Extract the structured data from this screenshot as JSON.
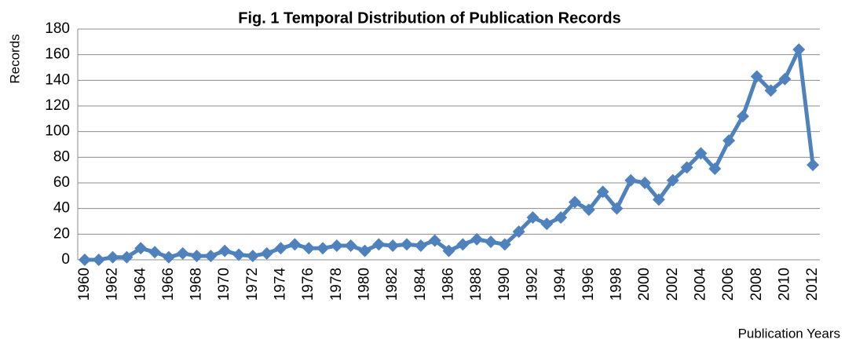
{
  "chart_data": {
    "type": "line",
    "title": "Fig. 1  Temporal Distribution of Publication Records",
    "y_label": "Records",
    "x_label": "Publication Years",
    "categories": [
      "1960",
      null,
      "1962",
      null,
      "1964",
      null,
      "1966",
      null,
      "1968",
      null,
      "1970",
      null,
      "1972",
      null,
      "1974",
      null,
      "1976",
      null,
      "1978",
      null,
      "1980",
      null,
      "1982",
      null,
      "1984",
      null,
      "1986",
      null,
      "1988",
      null,
      "1990",
      null,
      "1992",
      null,
      "1994",
      null,
      "1996",
      null,
      "1998",
      null,
      "2000",
      null,
      "2002",
      null,
      "2004",
      null,
      "2006",
      null,
      "2008",
      null,
      "2010",
      null,
      "2012"
    ],
    "series": [
      {
        "name": "Records",
        "color": "#4f81bd",
        "values": [
          0,
          0,
          2,
          2,
          9,
          6,
          2,
          5,
          3,
          3,
          7,
          4,
          3,
          5,
          9,
          12,
          9,
          9,
          11,
          11,
          7,
          12,
          11,
          12,
          11,
          15,
          7,
          12,
          16,
          14,
          12,
          22,
          33,
          28,
          33,
          45,
          39,
          53,
          40,
          62,
          60,
          47,
          62,
          72,
          83,
          71,
          93,
          112,
          143,
          132,
          141,
          164,
          74
        ]
      }
    ],
    "ylim": [
      0,
      180
    ],
    "yticks": [
      0,
      20,
      40,
      60,
      80,
      100,
      120,
      140,
      160,
      180
    ],
    "grid": true
  }
}
